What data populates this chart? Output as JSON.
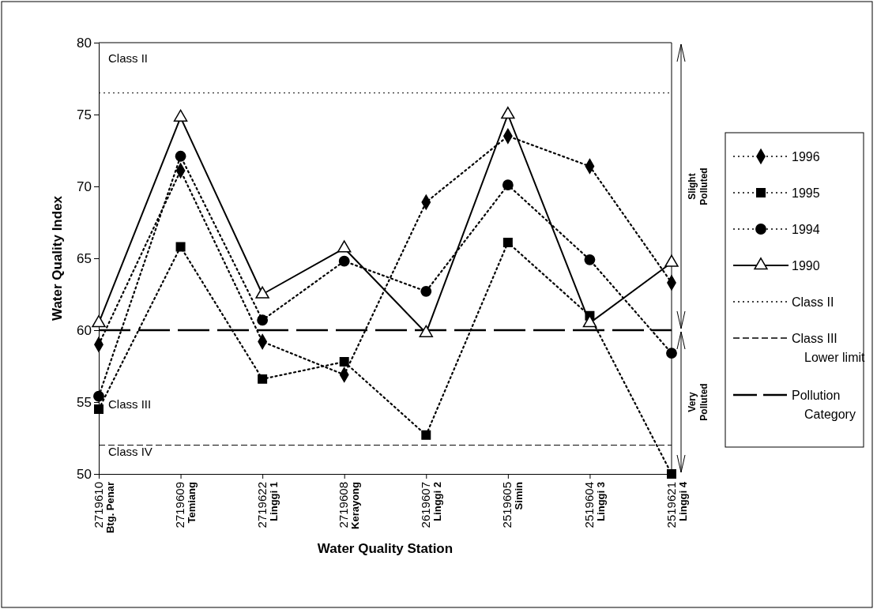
{
  "chart_data": {
    "type": "line",
    "xlabel": "Water Quality Station",
    "ylabel": "Water Quality Index",
    "categories": [
      "2719610\nBtg. Penar",
      "2719609\nTemiang",
      "2719622\nLinggi 1",
      "2719608\nKerayong",
      "2619607\nLinggi 2",
      "2519605\nSimin",
      "2519604\nLinggi 3",
      "2519621\nLinggi 4"
    ],
    "series": [
      {
        "name": "1996",
        "color": "#000000",
        "marker": "diamond",
        "line_style": "dotted",
        "values": [
          59.0,
          71.1,
          59.2,
          56.9,
          68.9,
          73.5,
          71.4,
          63.3
        ]
      },
      {
        "name": "1995",
        "color": "#000000",
        "marker": "square",
        "line_style": "dotted",
        "values": [
          54.5,
          65.8,
          56.6,
          57.8,
          52.7,
          66.1,
          61.0,
          50.0
        ]
      },
      {
        "name": "1994",
        "color": "#000000",
        "marker": "circle",
        "line_style": "dotted",
        "values": [
          55.4,
          72.1,
          60.7,
          64.8,
          62.7,
          70.1,
          64.9,
          58.4
        ]
      },
      {
        "name": "1990",
        "color": "#000000",
        "marker": "triangle",
        "line_style": "solid",
        "values": [
          60.5,
          74.8,
          62.5,
          65.7,
          59.8,
          75.0,
          60.5,
          64.7
        ]
      }
    ],
    "ylim": [
      50,
      80
    ],
    "yticks": [
      50,
      55,
      60,
      65,
      70,
      75,
      80
    ],
    "legend": "right",
    "ref_lines": [
      {
        "axis": "y",
        "value": 76.5,
        "label": "Class II",
        "line_style": "dotted",
        "color": "#000000"
      },
      {
        "axis": "y",
        "value": 52,
        "label": "Class III\nLower limit",
        "line_style": "dashed",
        "color": "#000000"
      },
      {
        "axis": "y",
        "value": 60,
        "label": "Pollution\nCategory",
        "line_style": "dashed",
        "color": "#000000"
      }
    ],
    "annotations": [
      "Class II",
      "Class III",
      "Class IV",
      "Slight\nPolluted",
      "Very\nPolluted"
    ]
  }
}
